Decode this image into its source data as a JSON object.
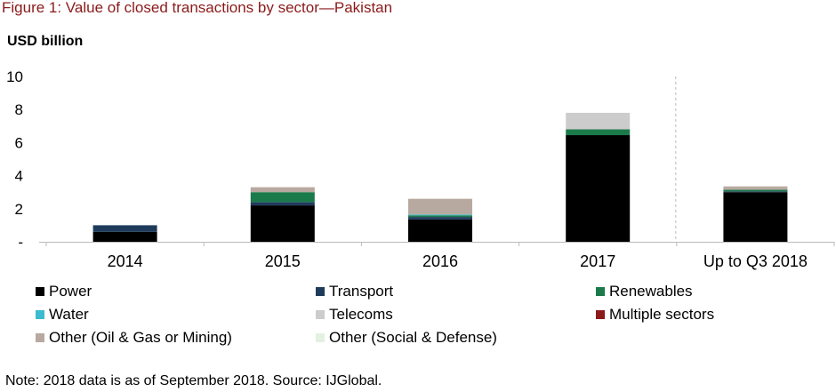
{
  "figure_title": "Figure 1: Value of closed transactions by sector—Pakistan",
  "note": "Note: 2018 data is as of September 2018. Source: IJGlobal.",
  "chart_data": {
    "type": "bar",
    "stacked": true,
    "title": "Figure 1: Value of closed transactions by sector—Pakistan",
    "ylabel": "USD billion",
    "xlabel": "",
    "categories": [
      "2014",
      "2015",
      "2016",
      "2017",
      "Up to Q3 2018"
    ],
    "ylim": [
      0,
      10
    ],
    "yticks": [
      0,
      2,
      4,
      6,
      8,
      10
    ],
    "ytick_labels": [
      "-",
      "2",
      "4",
      "6",
      "8",
      "10"
    ],
    "grid": false,
    "legend_position": "bottom",
    "divider_before_last_category": true,
    "series": [
      {
        "name": "Power",
        "color": "#000000",
        "values": [
          0.6,
          2.2,
          1.35,
          6.45,
          3.0
        ]
      },
      {
        "name": "Transport",
        "color": "#1f3b5c",
        "values": [
          0.4,
          0.2,
          0.15,
          0.0,
          0.05
        ]
      },
      {
        "name": "Renewables",
        "color": "#1b7a4a",
        "values": [
          0.0,
          0.6,
          0.1,
          0.35,
          0.1
        ]
      },
      {
        "name": "Water",
        "color": "#3bbad0",
        "values": [
          0.0,
          0.0,
          0.05,
          0.0,
          0.0
        ]
      },
      {
        "name": "Telecoms",
        "color": "#cccccc",
        "values": [
          0.0,
          0.0,
          0.0,
          1.0,
          0.0
        ]
      },
      {
        "name": "Multiple sectors",
        "color": "#8b1a1a",
        "values": [
          0.0,
          0.0,
          0.0,
          0.0,
          0.0
        ]
      },
      {
        "name": "Other (Oil & Gas or Mining)",
        "color": "#b8a9a0",
        "values": [
          0.0,
          0.3,
          0.95,
          0.0,
          0.2
        ]
      },
      {
        "name": "Other (Social & Defense)",
        "color": "#e3f1e0",
        "values": [
          0.0,
          0.0,
          0.0,
          0.0,
          0.0
        ]
      }
    ]
  }
}
